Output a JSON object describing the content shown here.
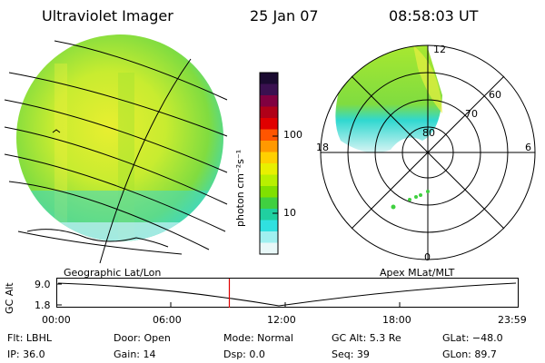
{
  "header": {
    "title": "Ultraviolet Imager",
    "date": "25 Jan 07",
    "time": "08:58:03 UT"
  },
  "colorbar": {
    "label": "photon cm⁻²s⁻¹",
    "ticks": [
      "100",
      "10"
    ],
    "colors": [
      "#1a0a30",
      "#3a1050",
      "#800040",
      "#b00018",
      "#e00000",
      "#ff5500",
      "#ff9900",
      "#ffd000",
      "#e8f000",
      "#b8f000",
      "#80e000",
      "#40d040",
      "#20d0a0",
      "#30e0e0",
      "#a0f0f0",
      "#e8f8f8"
    ]
  },
  "polar": {
    "lat_labels": [
      "80",
      "70",
      "60"
    ],
    "mlt_labels": {
      "top": "12",
      "left": "18",
      "right": "6",
      "bottom": "0"
    }
  },
  "strip": {
    "ylabel": "GC Alt",
    "yticks": [
      "9.0",
      "1.8"
    ],
    "left_label": "Geographic Lat/Lon",
    "right_label": "Apex  MLat/MLT",
    "xticks": [
      "00:00",
      "06:00",
      "12:00",
      "18:00",
      "23:59"
    ],
    "marker_time_fraction": 0.374
  },
  "status": {
    "flt": "Flt: LBHL",
    "door": "Door: Open",
    "mode": "Mode: Normal",
    "gcalt": "GC Alt: 5.3 Re",
    "glat": "GLat: −48.0",
    "ip": "IP: 36.0",
    "gain": "Gain: 14",
    "dsp": "Dsp:     0.0",
    "seq": "Seq: 39",
    "glon": "GLon:  89.7"
  }
}
